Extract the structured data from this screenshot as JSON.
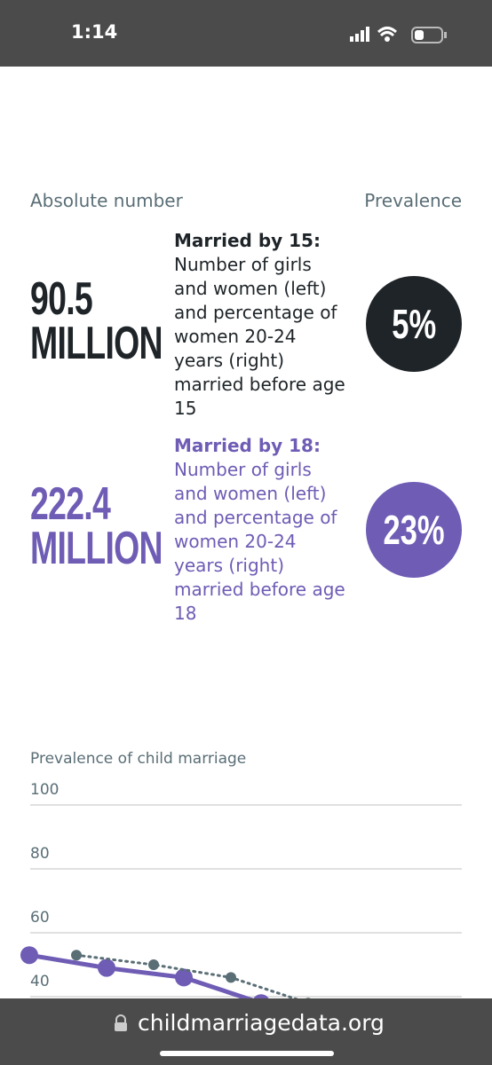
{
  "status_bar": {
    "time": "1:14"
  },
  "stats": {
    "header_left": "Absolute number",
    "header_right": "Prevalence",
    "rows": [
      {
        "number": "90.5",
        "unit": "MILLION",
        "label": "Married by 15:",
        "description": "Number of girls and women (left) and percentage of women 20-24 years (right) married before age 15",
        "prevalence": "5%"
      },
      {
        "number": "222.4",
        "unit": "MILLION",
        "label": "Married by 18:",
        "description": "Number of girls and women (left) and percentage of women 20-24 years (right) married before age 18",
        "prevalence": "23%"
      }
    ]
  },
  "chart_data": {
    "type": "line",
    "title": "Prevalence of child marriage",
    "categories": [
      null,
      null,
      null,
      null
    ],
    "series": [
      {
        "color": "#6f5cb5",
        "values": [
          53,
          49,
          46,
          38
        ]
      },
      {
        "color": "#5a6e76",
        "values": [
          53,
          50,
          46,
          38
        ]
      }
    ],
    "ylim": [
      0,
      100
    ],
    "yticks": [
      40,
      60,
      80,
      100
    ],
    "grid": true
  },
  "browser_bar": {
    "url": "childmarriagedata.org"
  }
}
